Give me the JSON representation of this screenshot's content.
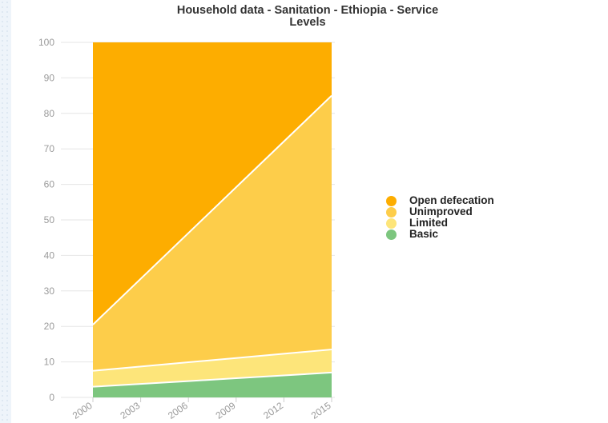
{
  "chart_data": {
    "type": "area",
    "stacked": true,
    "title": "Household data - Sanitation - Ethiopia - Service\nLevels",
    "x": [
      "2000",
      "2003",
      "2006",
      "2009",
      "2012",
      "2015"
    ],
    "ylim": [
      0,
      100
    ],
    "yticks": [
      0,
      10,
      20,
      30,
      40,
      50,
      60,
      70,
      80,
      90,
      100
    ],
    "grid": true,
    "legend_position": "right",
    "series": [
      {
        "name": "Basic",
        "color": "#7dc67f",
        "values": [
          3,
          3.8,
          4.6,
          5.4,
          6.2,
          7
        ]
      },
      {
        "name": "Limited",
        "color": "#fde57a",
        "values": [
          4.5,
          4.9,
          5.3,
          5.7,
          6.1,
          6.5
        ]
      },
      {
        "name": "Unimproved",
        "color": "#fdcd4a",
        "values": [
          13,
          24.7,
          36.4,
          48.1,
          59.8,
          71.5
        ]
      },
      {
        "name": "Open defecation",
        "color": "#fdad00",
        "values": [
          79.5,
          66.6,
          53.7,
          40.8,
          27.9,
          15
        ]
      }
    ],
    "legend_order": [
      "Open defecation",
      "Unimproved",
      "Limited",
      "Basic"
    ]
  }
}
